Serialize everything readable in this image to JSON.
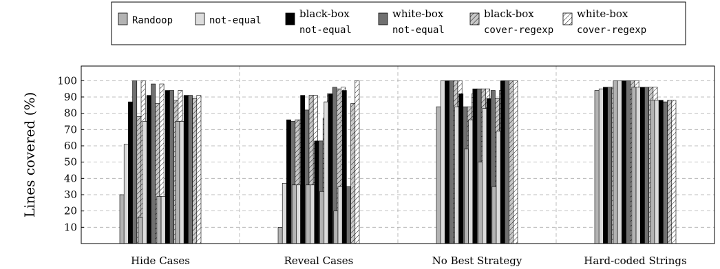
{
  "chart_data": {
    "type": "bar",
    "ylabel": "Lines covered (%)",
    "y_ticks": [
      "10",
      "20",
      "30",
      "40",
      "50",
      "60",
      "70",
      "80",
      "90",
      "100"
    ],
    "ylim": [
      0,
      109
    ],
    "grid": true,
    "legend_position": "top-center",
    "groups": [
      {
        "name": "Hide Cases",
        "subgroups": 4
      },
      {
        "name": "Reveal Cases",
        "subgroups": 5
      },
      {
        "name": "No Best Strategy",
        "subgroups": 5
      },
      {
        "name": "Hard-coded Strings",
        "subgroups": 4
      }
    ],
    "series": [
      {
        "name": "Randoop",
        "legend_lines": [
          "Randoop"
        ],
        "legend_font": "mono",
        "fill": "#b3b3b3",
        "pattern": "none",
        "values": [
          30,
          16,
          29,
          75,
          10,
          36,
          36,
          32,
          20,
          84,
          0,
          58,
          50,
          35,
          94,
          100,
          96,
          88
        ]
      },
      {
        "name": "not-equal",
        "legend_lines": [
          "not-equal"
        ],
        "legend_font": "mono",
        "fill": "#dcdcdc",
        "pattern": "none",
        "values": [
          61,
          75,
          29,
          75,
          37,
          36,
          36,
          87,
          35,
          100,
          84,
          76,
          83,
          69,
          95,
          100,
          96,
          88
        ]
      },
      {
        "name": "black-box not-equal",
        "legend_lines": [
          "black-box",
          "not-equal"
        ],
        "legend_font": "mixed",
        "fill": "#000000",
        "pattern": "none",
        "values": [
          87,
          91,
          94,
          91,
          76,
          91,
          63,
          92,
          94,
          100,
          92,
          95,
          89,
          100,
          96,
          100,
          96,
          88
        ]
      },
      {
        "name": "white-box not-equal",
        "legend_lines": [
          "white-box",
          "not-equal"
        ],
        "legend_font": "mixed",
        "fill": "#707070",
        "pattern": "none",
        "values": [
          100,
          98,
          94,
          91,
          75,
          82,
          63,
          96,
          35,
          100,
          84,
          95,
          94,
          100,
          96,
          100,
          96,
          87
        ]
      },
      {
        "name": "black-box cover-regexp",
        "legend_lines": [
          "black-box",
          "cover-regexp"
        ],
        "legend_font": "mixed",
        "fill": "#c8c8c8",
        "pattern": "hatch",
        "values": [
          78,
          86,
          88,
          89,
          76,
          91,
          77,
          95,
          86,
          100,
          84,
          95,
          89,
          100,
          96,
          100,
          96,
          88
        ]
      },
      {
        "name": "white-box cover-regexp",
        "legend_lines": [
          "white-box",
          "cover-regexp"
        ],
        "legend_font": "mixed",
        "fill": "#ffffff",
        "pattern": "hatch",
        "values": [
          100,
          98,
          94,
          91,
          76,
          91,
          92,
          96,
          100,
          100,
          92,
          95,
          94,
          100,
          96,
          100,
          96,
          88
        ]
      }
    ]
  }
}
